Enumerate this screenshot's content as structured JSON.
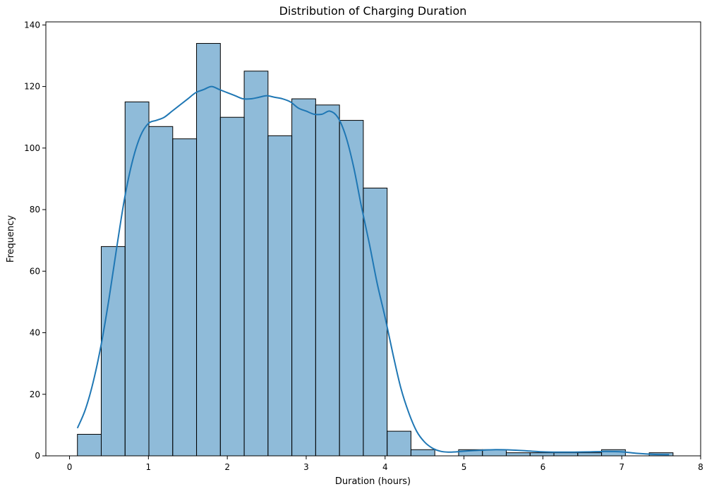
{
  "chart_data": {
    "type": "bar",
    "title": "Distribution of Charging Duration",
    "xlabel": "Duration (hours)",
    "ylabel": "Frequency",
    "xlim": [
      -0.3,
      8.0
    ],
    "ylim": [
      0,
      141
    ],
    "xticks": [
      0,
      1,
      2,
      3,
      4,
      5,
      6,
      7,
      8
    ],
    "yticks": [
      0,
      20,
      40,
      60,
      80,
      100,
      120,
      140
    ],
    "bin_start": 0.1,
    "bin_width": 0.302,
    "values": [
      7,
      68,
      115,
      107,
      103,
      134,
      110,
      125,
      104,
      116,
      114,
      109,
      87,
      8,
      2,
      0,
      2,
      2,
      1,
      1,
      1,
      1,
      2,
      0,
      1
    ],
    "bar_color": "#1f77b4",
    "bar_fill_opacity": 0.5,
    "bar_edge_color": "#000000",
    "kde_color": "#1f77b4",
    "kde": {
      "x": [
        0.1,
        0.2,
        0.3,
        0.4,
        0.5,
        0.6,
        0.7,
        0.8,
        0.9,
        1.0,
        1.1,
        1.2,
        1.3,
        1.4,
        1.5,
        1.6,
        1.7,
        1.8,
        1.9,
        2.0,
        2.1,
        2.2,
        2.3,
        2.4,
        2.5,
        2.6,
        2.7,
        2.8,
        2.9,
        3.0,
        3.1,
        3.2,
        3.3,
        3.4,
        3.5,
        3.6,
        3.7,
        3.8,
        3.9,
        4.0,
        4.1,
        4.2,
        4.3,
        4.4,
        4.5,
        4.6,
        4.7,
        4.8,
        4.9,
        5.0,
        5.2,
        5.4,
        5.6,
        5.8,
        6.0,
        6.2,
        6.4,
        6.6,
        6.8,
        7.0,
        7.2,
        7.4,
        7.6
      ],
      "y": [
        9,
        15,
        24,
        36,
        51,
        68,
        84,
        96,
        104,
        108,
        109,
        110,
        112,
        114,
        116,
        118,
        119,
        120,
        119,
        118,
        117,
        116,
        116,
        116.5,
        117,
        116.5,
        116,
        115,
        113,
        112,
        111,
        111,
        112,
        110,
        104,
        94,
        81,
        69,
        56,
        45,
        33,
        22,
        14,
        8,
        4.5,
        2.5,
        1.5,
        1.2,
        1.3,
        1.5,
        1.8,
        2.0,
        1.9,
        1.6,
        1.3,
        1.2,
        1.2,
        1.3,
        1.4,
        1.3,
        0.8,
        0.5,
        0.4
      ]
    }
  }
}
